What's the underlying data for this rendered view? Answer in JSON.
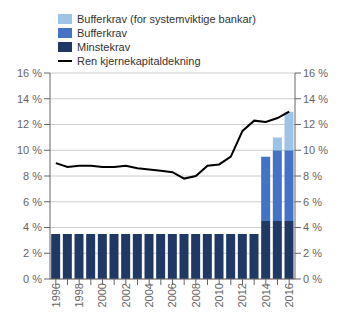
{
  "chart_data": {
    "type": "bar",
    "stacked": true,
    "categories": [
      "1996",
      null,
      "1998",
      null,
      "2000",
      null,
      "2002",
      null,
      "2004",
      null,
      "2006",
      null,
      "2008",
      null,
      "2010",
      null,
      "2012",
      null,
      "2014",
      null,
      "2016"
    ],
    "series": [
      {
        "name": "Minstekrav",
        "type": "bar",
        "color": "#1f3864",
        "values": [
          3.5,
          3.5,
          3.5,
          3.5,
          3.5,
          3.5,
          3.5,
          3.5,
          3.5,
          3.5,
          3.5,
          3.5,
          3.5,
          3.5,
          3.5,
          3.5,
          3.5,
          3.5,
          4.5,
          4.5,
          4.5
        ]
      },
      {
        "name": "Bufferkrav",
        "type": "bar",
        "color": "#4472c4",
        "values": [
          0,
          0,
          0,
          0,
          0,
          0,
          0,
          0,
          0,
          0,
          0,
          0,
          0,
          0,
          0,
          0,
          0,
          0,
          5.0,
          5.5,
          5.5
        ]
      },
      {
        "name": "Bufferkrav (for systemviktige bankar)",
        "type": "bar",
        "color": "#9dc3e6",
        "values": [
          0,
          0,
          0,
          0,
          0,
          0,
          0,
          0,
          0,
          0,
          0,
          0,
          0,
          0,
          0,
          0,
          0,
          0,
          0,
          1.0,
          3.0
        ]
      },
      {
        "name": "Ren kjernekapitaldekning",
        "type": "line",
        "color": "#000000",
        "values": [
          9.0,
          8.7,
          8.8,
          8.8,
          8.7,
          8.7,
          8.8,
          8.6,
          8.5,
          8.4,
          8.3,
          7.8,
          8.0,
          8.8,
          8.9,
          9.5,
          11.5,
          12.3,
          12.2,
          12.5,
          13.0
        ]
      }
    ],
    "ylim": [
      0,
      16
    ],
    "yticks": [
      {
        "value": 0,
        "label": "0 %"
      },
      {
        "value": 2,
        "label": "2 %"
      },
      {
        "value": 4,
        "label": "4 %"
      },
      {
        "value": 6,
        "label": "6 %"
      },
      {
        "value": 8,
        "label": "8 %"
      },
      {
        "value": 10,
        "label": "10 %"
      },
      {
        "value": 12,
        "label": "12 %"
      },
      {
        "value": 14,
        "label": "14 %"
      },
      {
        "value": 16,
        "label": "16 %"
      }
    ],
    "y2lim": [
      0,
      16
    ],
    "y2ticks": [
      {
        "value": 0,
        "label": "0 %"
      },
      {
        "value": 2,
        "label": "2 %"
      },
      {
        "value": 4,
        "label": "4 %"
      },
      {
        "value": 6,
        "label": "6 %"
      },
      {
        "value": 8,
        "label": "8 %"
      },
      {
        "value": 10,
        "label": "10 %"
      },
      {
        "value": 12,
        "label": "12 %"
      },
      {
        "value": 14,
        "label": "14 %"
      },
      {
        "value": 16,
        "label": "16 %"
      }
    ],
    "grid": true,
    "legend": "upper left"
  }
}
